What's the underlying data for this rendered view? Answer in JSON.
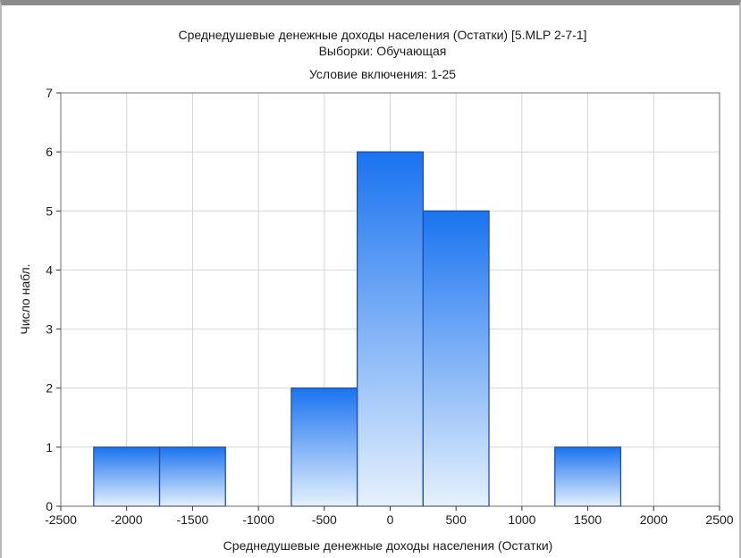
{
  "chart_data": {
    "type": "bar",
    "title": "Среднедушевые денежные доходы населения (Остатки) [5.MLP 2-7-1]",
    "subtitle_lines": [
      "Выборки: Обучающая",
      "Условие включения: 1-25"
    ],
    "xlabel": "Среднедушевые денежные доходы населения (Остатки)",
    "ylabel": "Число набл.",
    "xlim": [
      -2500,
      2500
    ],
    "ylim": [
      0,
      7
    ],
    "x_ticks": [
      "-2500",
      "-2000",
      "-1500",
      "-1000",
      "-500",
      "0",
      "500",
      "1000",
      "1500",
      "2000",
      "2500"
    ],
    "y_ticks": [
      "0",
      "1",
      "2",
      "3",
      "4",
      "5",
      "6",
      "7"
    ],
    "bins": [
      {
        "from": -2250,
        "to": -1750,
        "count": 1
      },
      {
        "from": -1750,
        "to": -1250,
        "count": 1
      },
      {
        "from": -1250,
        "to": -750,
        "count": 0
      },
      {
        "from": -750,
        "to": -250,
        "count": 2
      },
      {
        "from": -250,
        "to": 250,
        "count": 6
      },
      {
        "from": 250,
        "to": 750,
        "count": 5
      },
      {
        "from": 750,
        "to": 1250,
        "count": 0
      },
      {
        "from": 1250,
        "to": 1750,
        "count": 1
      },
      {
        "from": 1750,
        "to": 2250,
        "count": 0
      }
    ],
    "grid": true,
    "bar_color_top": "#1a73f0",
    "bar_color_bottom": "#e6f1fd",
    "bar_border": "#1f4fa8"
  }
}
